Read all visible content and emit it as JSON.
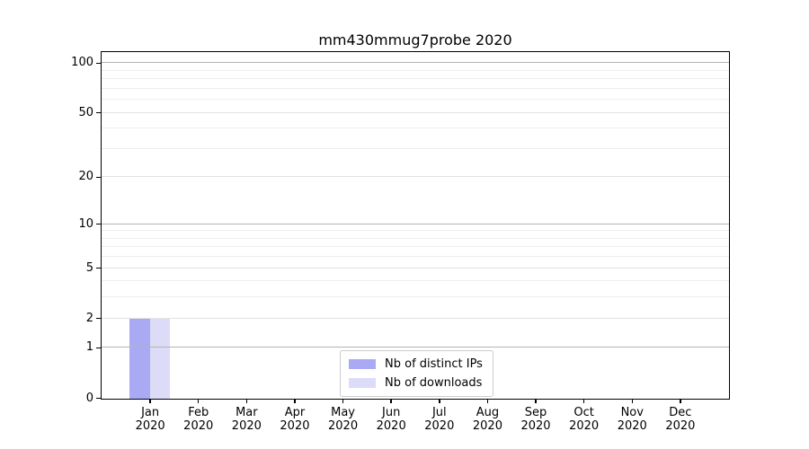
{
  "chart_data": {
    "type": "bar",
    "title": "mm430mmug7probe 2020",
    "x_categories": [
      {
        "month": "Jan",
        "year": "2020"
      },
      {
        "month": "Feb",
        "year": "2020"
      },
      {
        "month": "Mar",
        "year": "2020"
      },
      {
        "month": "Apr",
        "year": "2020"
      },
      {
        "month": "May",
        "year": "2020"
      },
      {
        "month": "Jun",
        "year": "2020"
      },
      {
        "month": "Jul",
        "year": "2020"
      },
      {
        "month": "Aug",
        "year": "2020"
      },
      {
        "month": "Sep",
        "year": "2020"
      },
      {
        "month": "Oct",
        "year": "2020"
      },
      {
        "month": "Nov",
        "year": "2020"
      },
      {
        "month": "Dec",
        "year": "2020"
      }
    ],
    "series": [
      {
        "name": "Nb of distinct IPs",
        "color": "#aaaaf4",
        "values": [
          2,
          0,
          0,
          0,
          0,
          0,
          0,
          0,
          0,
          0,
          0,
          0
        ]
      },
      {
        "name": "Nb of downloads",
        "color": "#dcdcf8",
        "values": [
          2,
          0,
          0,
          0,
          0,
          0,
          0,
          0,
          0,
          0,
          0,
          0
        ]
      }
    ],
    "yscale": "log1p",
    "ylim": [
      0,
      116
    ],
    "yticks_labeled": [
      0,
      1,
      2,
      5,
      10,
      20,
      50,
      100
    ],
    "yticks_decade": [
      1,
      10,
      100
    ],
    "yticks_minor": [
      3,
      4,
      6,
      7,
      8,
      9,
      30,
      40,
      60,
      70,
      80,
      90
    ],
    "grid": true,
    "legend_position": "lower center"
  },
  "colors": {
    "bar_distinct_ips": "#aaaaf4",
    "bar_downloads": "#dcdcf8",
    "grid_decade": "#b4b4b4",
    "grid_labeled": "#e2e2e2",
    "grid_minor": "#eeeeee",
    "spine": "#000000",
    "background": "#ffffff",
    "legend_border": "#cccccc"
  }
}
